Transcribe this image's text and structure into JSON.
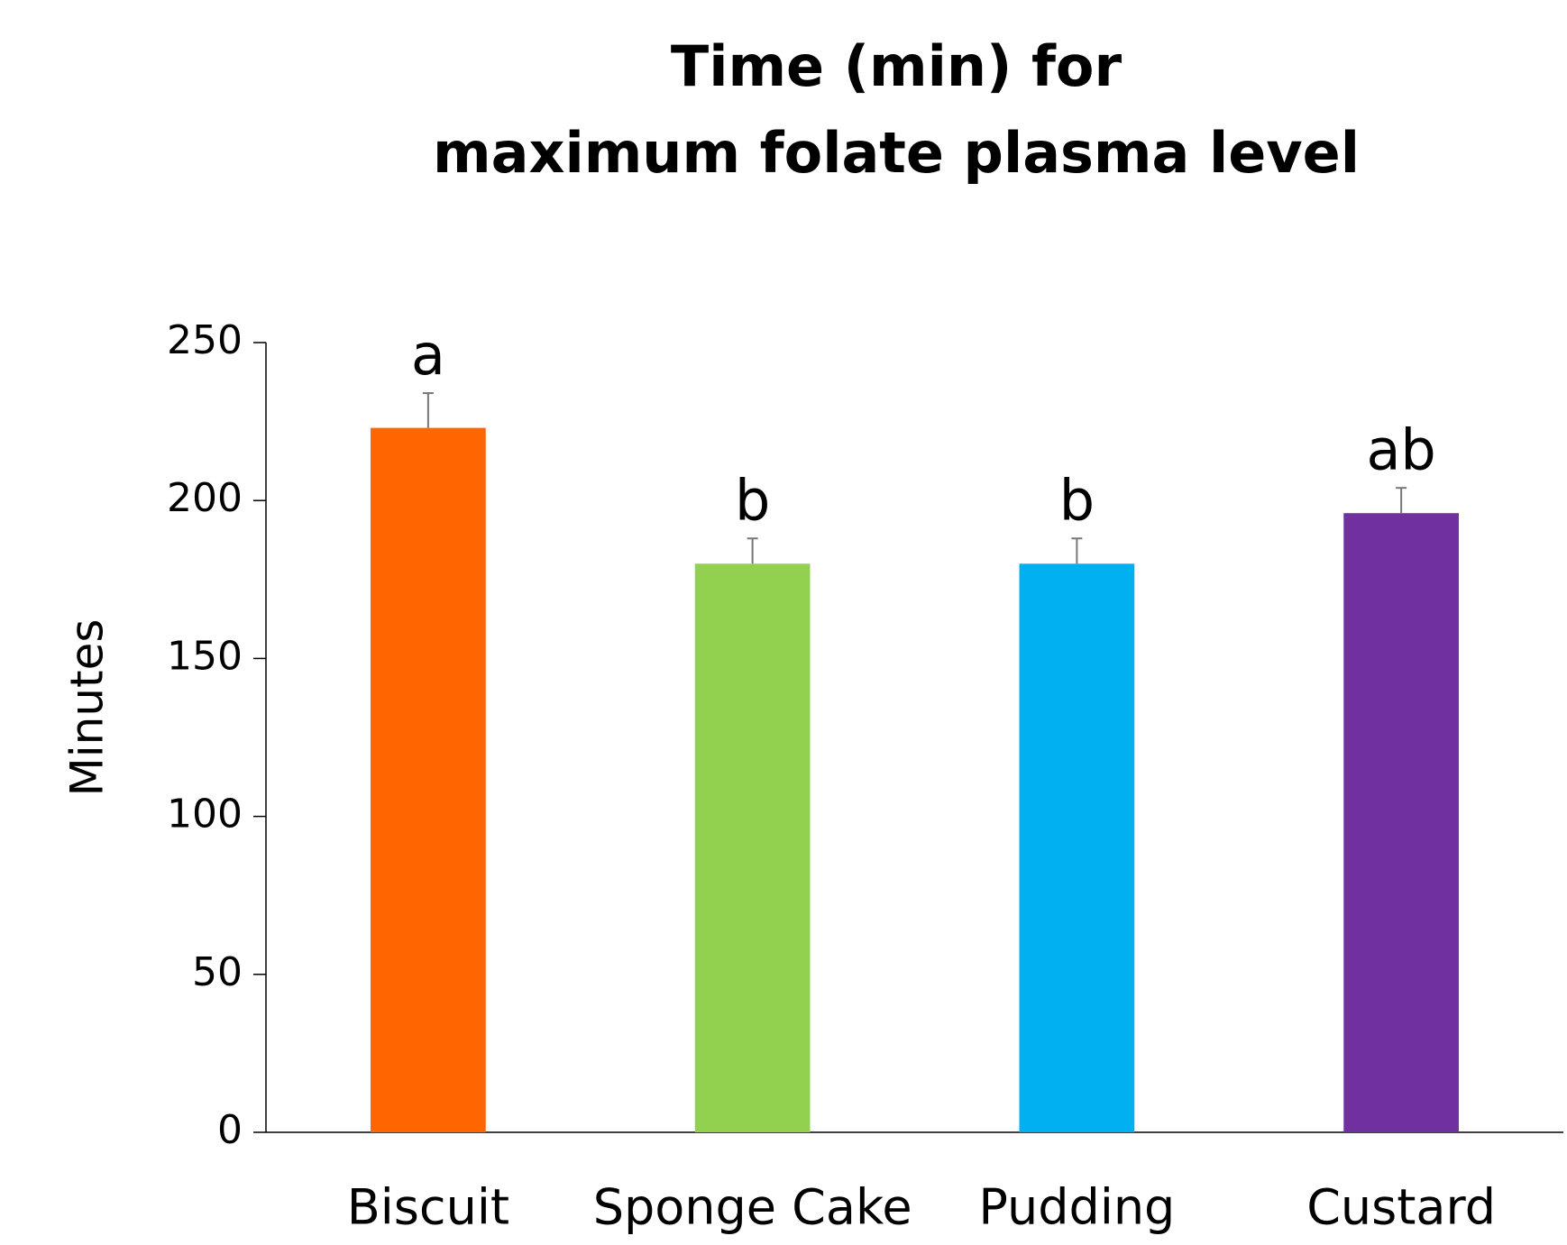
{
  "chart_data": {
    "type": "bar",
    "title": [
      "Time (min) for",
      "maximum folate plasma level"
    ],
    "ylabel": "Minutes",
    "categories": [
      "Biscuit",
      "Sponge Cake",
      "Pudding",
      "Custard"
    ],
    "series": [
      {
        "values": [
          223,
          180,
          180,
          196
        ],
        "errors": [
          11,
          8,
          8,
          8
        ],
        "colors": [
          "#ff6600",
          "#92d050",
          "#00b0f0",
          "#7030a0"
        ],
        "annotations": [
          "a",
          "b",
          "b",
          "ab"
        ]
      }
    ],
    "ylim": [
      0,
      250
    ],
    "yticks": [
      0,
      50,
      100,
      150,
      200,
      250
    ],
    "grid": false
  }
}
